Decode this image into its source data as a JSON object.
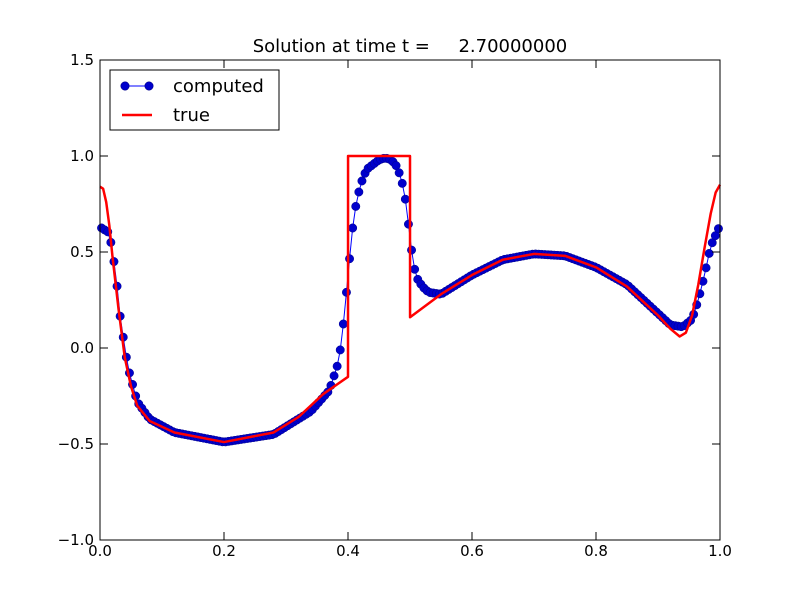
{
  "chart_data": {
    "type": "line",
    "title": "Solution at time t =     2.70000000",
    "xlabel": "",
    "ylabel": "",
    "xlim": [
      0.0,
      1.0
    ],
    "ylim": [
      -1.0,
      1.5
    ],
    "x_ticks": [
      0.0,
      0.2,
      0.4,
      0.6,
      0.8,
      1.0
    ],
    "x_tick_labels": [
      "0.0",
      "0.2",
      "0.4",
      "0.6",
      "0.8",
      "1.0"
    ],
    "y_ticks": [
      -1.0,
      -0.5,
      0.0,
      0.5,
      1.0,
      1.5
    ],
    "y_tick_labels": [
      "−1.0",
      "−0.5",
      "0.0",
      "0.5",
      "1.0",
      "1.5"
    ],
    "grid": false,
    "legend_position": "top-left",
    "series": [
      {
        "name": "computed",
        "style": "line-with-circle-markers",
        "color": "#0000ff",
        "marker_color": "#0000cc",
        "n_points": 200,
        "x_range": [
          0.0025,
          0.9975
        ],
        "keypoints": [
          [
            0.0,
            0.63
          ],
          [
            0.015,
            0.6
          ],
          [
            0.025,
            0.4
          ],
          [
            0.033,
            0.15
          ],
          [
            0.045,
            -0.1
          ],
          [
            0.06,
            -0.28
          ],
          [
            0.08,
            -0.37
          ],
          [
            0.12,
            -0.44
          ],
          [
            0.2,
            -0.49
          ],
          [
            0.28,
            -0.45
          ],
          [
            0.34,
            -0.33
          ],
          [
            0.37,
            -0.22
          ],
          [
            0.385,
            -0.07
          ],
          [
            0.39,
            0.05
          ],
          [
            0.395,
            0.2
          ],
          [
            0.4,
            0.38
          ],
          [
            0.405,
            0.55
          ],
          [
            0.41,
            0.7
          ],
          [
            0.42,
            0.85
          ],
          [
            0.43,
            0.93
          ],
          [
            0.45,
            0.98
          ],
          [
            0.46,
            0.99
          ],
          [
            0.47,
            0.98
          ],
          [
            0.48,
            0.94
          ],
          [
            0.49,
            0.83
          ],
          [
            0.495,
            0.72
          ],
          [
            0.5,
            0.57
          ],
          [
            0.505,
            0.45
          ],
          [
            0.51,
            0.37
          ],
          [
            0.52,
            0.32
          ],
          [
            0.53,
            0.29
          ],
          [
            0.55,
            0.28
          ],
          [
            0.6,
            0.38
          ],
          [
            0.65,
            0.46
          ],
          [
            0.7,
            0.49
          ],
          [
            0.75,
            0.48
          ],
          [
            0.8,
            0.42
          ],
          [
            0.85,
            0.33
          ],
          [
            0.9,
            0.18
          ],
          [
            0.92,
            0.12
          ],
          [
            0.94,
            0.11
          ],
          [
            0.955,
            0.15
          ],
          [
            0.965,
            0.25
          ],
          [
            0.975,
            0.38
          ],
          [
            0.985,
            0.53
          ],
          [
            1.0,
            0.64
          ]
        ]
      },
      {
        "name": "true",
        "style": "line",
        "color": "#ff0000",
        "keypoints": [
          [
            0.0,
            0.84
          ],
          [
            0.005,
            0.83
          ],
          [
            0.01,
            0.76
          ],
          [
            0.015,
            0.64
          ],
          [
            0.02,
            0.48
          ],
          [
            0.03,
            0.2
          ],
          [
            0.04,
            -0.05
          ],
          [
            0.05,
            -0.2
          ],
          [
            0.06,
            -0.3
          ],
          [
            0.08,
            -0.38
          ],
          [
            0.12,
            -0.44
          ],
          [
            0.2,
            -0.49
          ],
          [
            0.28,
            -0.44
          ],
          [
            0.32,
            -0.36
          ],
          [
            0.36,
            -0.24
          ],
          [
            0.4,
            -0.15
          ],
          [
            0.4001,
            1.0
          ],
          [
            0.5,
            1.0
          ],
          [
            0.5001,
            0.16
          ],
          [
            0.55,
            0.28
          ],
          [
            0.6,
            0.38
          ],
          [
            0.65,
            0.46
          ],
          [
            0.7,
            0.49
          ],
          [
            0.75,
            0.48
          ],
          [
            0.8,
            0.42
          ],
          [
            0.85,
            0.32
          ],
          [
            0.9,
            0.17
          ],
          [
            0.92,
            0.1
          ],
          [
            0.935,
            0.06
          ],
          [
            0.945,
            0.08
          ],
          [
            0.955,
            0.17
          ],
          [
            0.965,
            0.33
          ],
          [
            0.975,
            0.52
          ],
          [
            0.985,
            0.7
          ],
          [
            0.993,
            0.81
          ],
          [
            1.0,
            0.85
          ]
        ]
      }
    ]
  }
}
